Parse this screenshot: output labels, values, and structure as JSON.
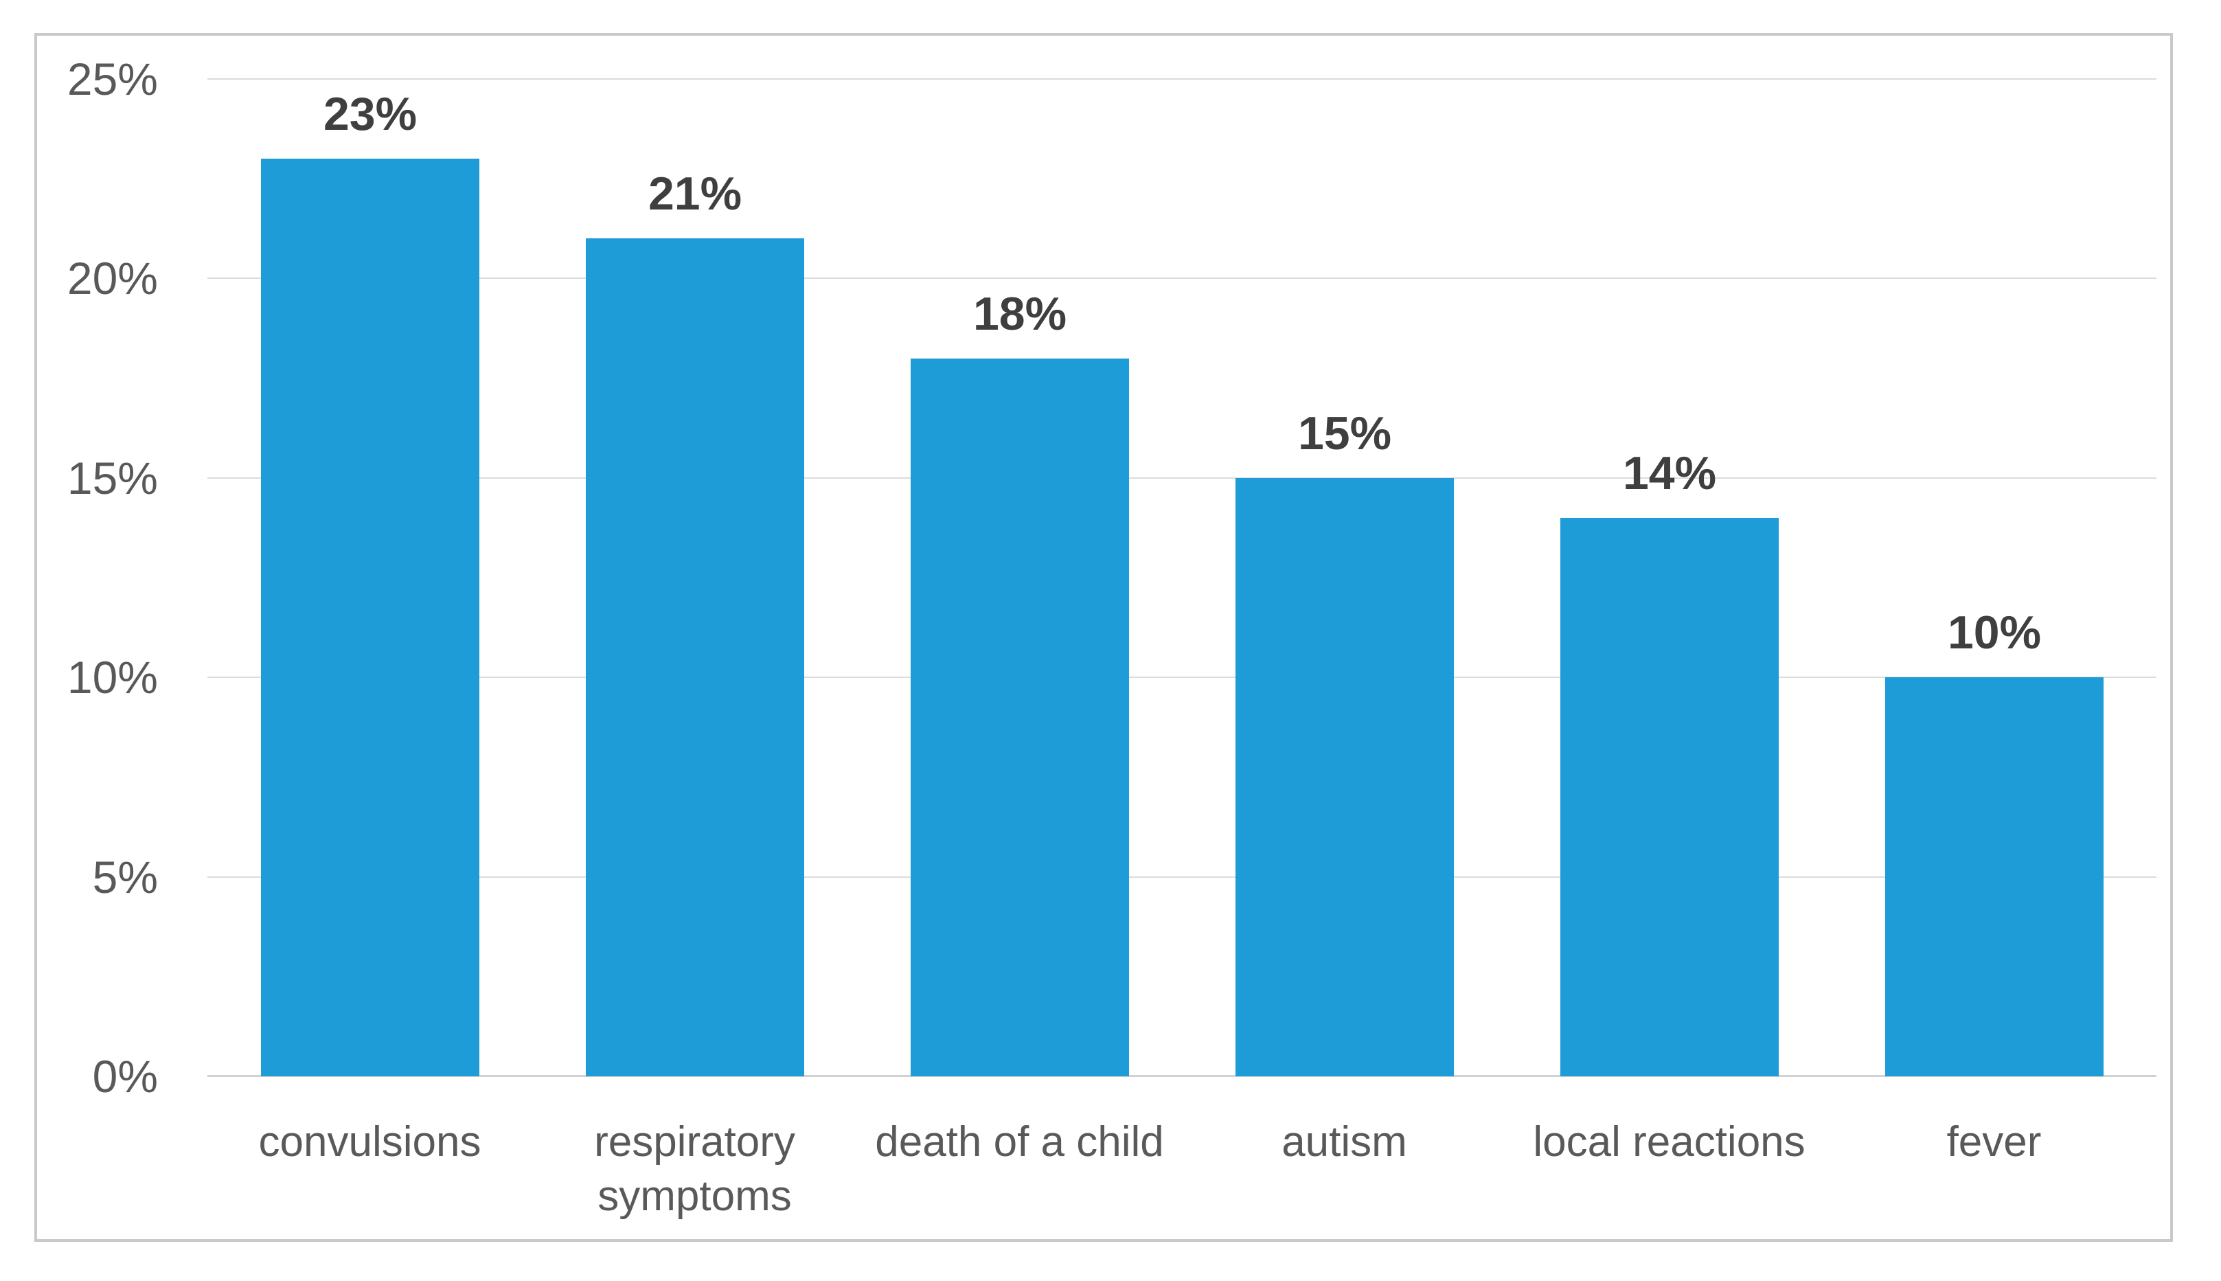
{
  "chart_data": {
    "type": "bar",
    "title": "",
    "xlabel": "",
    "ylabel": "",
    "legend": "none",
    "grid": "horizontal",
    "categories": [
      "convulsions",
      "respiratory symptoms",
      "death of a child",
      "autism",
      "local reactions",
      "fever"
    ],
    "values": [
      23,
      21,
      18,
      15,
      14,
      10
    ],
    "data_labels": [
      "23%",
      "21%",
      "18%",
      "15%",
      "14%",
      "10%"
    ],
    "y_axis": {
      "tick_labels": [
        "25%",
        "20%",
        "15%",
        "10%",
        "5%",
        "0%"
      ],
      "tick_values": [
        25,
        20,
        15,
        10,
        5,
        0
      ],
      "min": 0,
      "max": 25,
      "step": 5
    },
    "colors": {
      "bar": "#1E9CD8",
      "value_label": "#3F3F3F",
      "axis_text": "#595959",
      "gridline": "#DCDCDC",
      "axis_line": "#D2D2D2",
      "frame_border": "#C9C9C9",
      "background": "#FFFFFF"
    }
  }
}
